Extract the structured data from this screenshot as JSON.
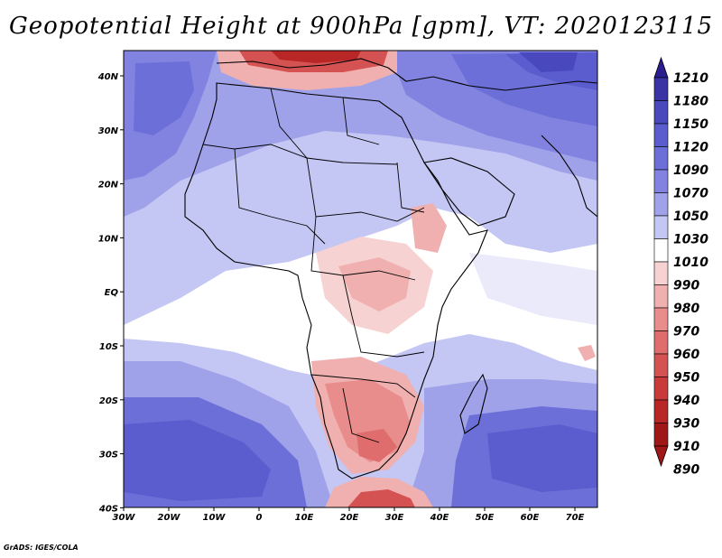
{
  "title": "Geopotential Height at 900hPa [gpm], VT: 2020123115",
  "credit": "GrADS: IGES/COLA",
  "map": {
    "region": "Africa",
    "variable": "Geopotential Height",
    "level": "900hPa",
    "units": "gpm",
    "valid_time": "2020123115",
    "lon_range": [
      -30,
      75
    ],
    "lat_range": [
      -40,
      45
    ],
    "lon_ticks": [
      "30W",
      "20W",
      "10W",
      "0",
      "10E",
      "20E",
      "30E",
      "40E",
      "50E",
      "60E",
      "70E"
    ],
    "lat_ticks": [
      "40N",
      "30N",
      "20N",
      "10N",
      "EQ",
      "10S",
      "20S",
      "30S",
      "40S"
    ]
  },
  "colorbar": {
    "levels": [
      "1210",
      "1180",
      "1150",
      "1120",
      "1090",
      "1070",
      "1050",
      "1030",
      "1010",
      "990",
      "980",
      "970",
      "960",
      "950",
      "940",
      "930",
      "910",
      "890"
    ],
    "colors": {
      "c1180": "#2a1d8f",
      "c1150": "#3a33a6",
      "c1120": "#4a48bd",
      "c1090": "#5b5ccd",
      "c1070": "#6c6fd8",
      "c1050": "#8283e0",
      "c1030": "#9fa1e9",
      "c1010": "#c4c6f3",
      "c990": "#ffffff",
      "c980": "#f7d2d2",
      "c970": "#f0b0b0",
      "c960": "#e88c8c",
      "c950": "#df6d6d",
      "c940": "#d55252",
      "c930": "#c93a3a",
      "c910": "#b82626",
      "c890": "#a01717"
    }
  }
}
